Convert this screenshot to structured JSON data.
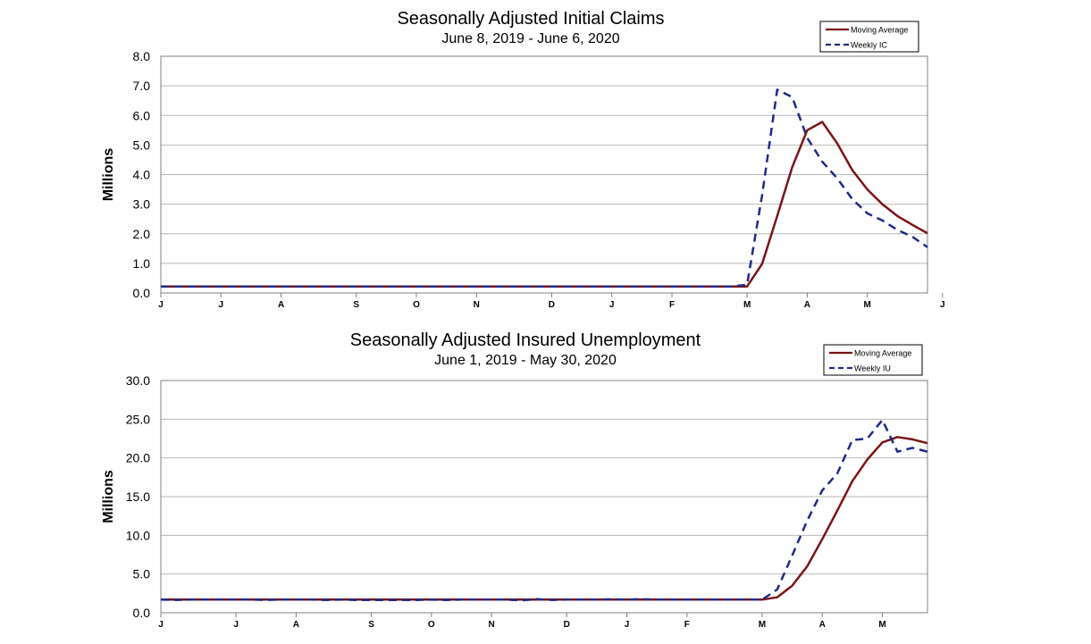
{
  "chart_data": [
    {
      "type": "line",
      "title": "Seasonally Adjusted Initial Claims",
      "subtitle": "June 8, 2019 - June 6, 2020",
      "ylabel": "Millions",
      "ylim": [
        0,
        8
      ],
      "yticks": [
        "0.0",
        "1.0",
        "2.0",
        "3.0",
        "4.0",
        "5.0",
        "6.0",
        "7.0",
        "8.0"
      ],
      "grid": true,
      "legend_position": "top-right",
      "xticks": [
        {
          "label": "J",
          "week": 0
        },
        {
          "label": "J",
          "week": 4
        },
        {
          "label": "A",
          "week": 8
        },
        {
          "label": "S",
          "week": 13
        },
        {
          "label": "O",
          "week": 17
        },
        {
          "label": "N",
          "week": 21
        },
        {
          "label": "D",
          "week": 26
        },
        {
          "label": "J",
          "week": 30
        },
        {
          "label": "F",
          "week": 34
        },
        {
          "label": "M",
          "week": 39
        },
        {
          "label": "A",
          "week": 43
        },
        {
          "label": "M",
          "week": 47
        },
        {
          "label": "J",
          "week": 52
        }
      ],
      "series": [
        {
          "name": "Moving Average",
          "color": "#7b1416",
          "dash": false,
          "values": [
            0.22,
            0.22,
            0.22,
            0.22,
            0.22,
            0.22,
            0.22,
            0.22,
            0.22,
            0.22,
            0.22,
            0.22,
            0.22,
            0.22,
            0.22,
            0.22,
            0.22,
            0.22,
            0.22,
            0.22,
            0.22,
            0.22,
            0.22,
            0.22,
            0.22,
            0.22,
            0.22,
            0.22,
            0.22,
            0.22,
            0.22,
            0.22,
            0.22,
            0.22,
            0.22,
            0.22,
            0.22,
            0.22,
            0.22,
            0.22,
            0.98,
            2.6,
            4.25,
            5.5,
            5.78,
            5.05,
            4.15,
            3.5,
            3.0,
            2.6,
            2.3,
            2.02
          ]
        },
        {
          "name": "Weekly IC",
          "color": "#1f2a8c",
          "dash": true,
          "values": [
            0.22,
            0.22,
            0.22,
            0.22,
            0.22,
            0.22,
            0.22,
            0.22,
            0.22,
            0.22,
            0.22,
            0.22,
            0.22,
            0.22,
            0.22,
            0.22,
            0.22,
            0.22,
            0.22,
            0.22,
            0.22,
            0.22,
            0.22,
            0.22,
            0.22,
            0.22,
            0.22,
            0.22,
            0.22,
            0.22,
            0.22,
            0.22,
            0.22,
            0.22,
            0.22,
            0.22,
            0.22,
            0.22,
            0.22,
            0.28,
            3.3,
            6.87,
            6.62,
            5.24,
            4.44,
            3.87,
            3.17,
            2.69,
            2.45,
            2.13,
            1.9,
            1.55
          ]
        }
      ]
    },
    {
      "type": "line",
      "title": "Seasonally Adjusted Insured Unemployment",
      "subtitle": "June 1, 2019 - May 30, 2020",
      "ylabel": "Millions",
      "ylim": [
        0,
        30
      ],
      "yticks": [
        "0.0",
        "5.0",
        "10.0",
        "15.0",
        "20.0",
        "25.0",
        "30.0"
      ],
      "grid": true,
      "legend_position": "top-right",
      "xticks": [
        {
          "label": "J",
          "week": 0
        },
        {
          "label": "J",
          "week": 5
        },
        {
          "label": "A",
          "week": 9
        },
        {
          "label": "S",
          "week": 14
        },
        {
          "label": "O",
          "week": 18
        },
        {
          "label": "N",
          "week": 22
        },
        {
          "label": "D",
          "week": 27
        },
        {
          "label": "J",
          "week": 31
        },
        {
          "label": "F",
          "week": 35
        },
        {
          "label": "M",
          "week": 40
        },
        {
          "label": "A",
          "week": 44
        },
        {
          "label": "M",
          "week": 48
        }
      ],
      "series": [
        {
          "name": "Moving Average",
          "color": "#7b1416",
          "dash": false,
          "values": [
            1.7,
            1.7,
            1.7,
            1.7,
            1.7,
            1.7,
            1.7,
            1.7,
            1.7,
            1.7,
            1.7,
            1.7,
            1.7,
            1.7,
            1.7,
            1.7,
            1.7,
            1.7,
            1.7,
            1.7,
            1.7,
            1.7,
            1.7,
            1.7,
            1.7,
            1.7,
            1.7,
            1.7,
            1.7,
            1.7,
            1.7,
            1.7,
            1.7,
            1.7,
            1.7,
            1.7,
            1.7,
            1.7,
            1.7,
            1.7,
            1.7,
            2.0,
            3.5,
            6.0,
            9.5,
            13.2,
            17.0,
            19.8,
            22.0,
            22.7,
            22.4,
            21.9
          ]
        },
        {
          "name": "Weekly IU",
          "color": "#1f2a8c",
          "dash": true,
          "values": [
            1.7,
            1.65,
            1.7,
            1.7,
            1.7,
            1.7,
            1.7,
            1.65,
            1.7,
            1.7,
            1.7,
            1.65,
            1.7,
            1.65,
            1.65,
            1.65,
            1.65,
            1.65,
            1.7,
            1.65,
            1.7,
            1.7,
            1.7,
            1.7,
            1.6,
            1.75,
            1.65,
            1.7,
            1.7,
            1.7,
            1.75,
            1.7,
            1.75,
            1.7,
            1.7,
            1.7,
            1.7,
            1.7,
            1.7,
            1.7,
            1.7,
            3.0,
            7.4,
            11.9,
            15.8,
            18.0,
            22.3,
            22.5,
            24.9,
            20.8,
            21.3,
            20.8
          ]
        }
      ]
    }
  ]
}
